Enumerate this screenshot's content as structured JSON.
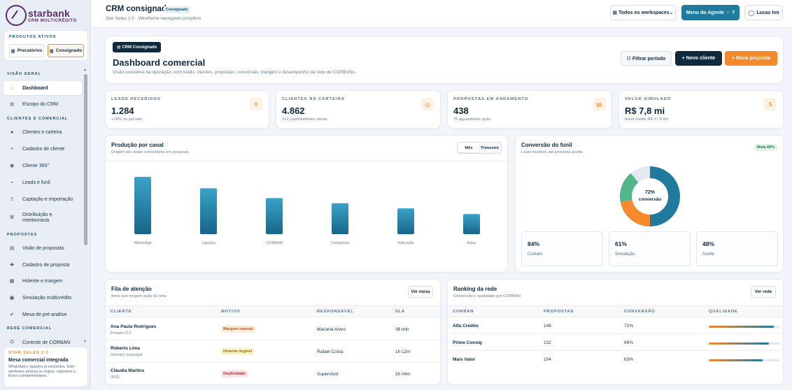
{
  "brand": {
    "name": "starbank",
    "tagline": "CRM MULTICRÉDITO"
  },
  "products": {
    "title": "PRODUTOS ATIVOS",
    "items": [
      {
        "label": "Precatórios",
        "icon": "grid-icon"
      },
      {
        "label": "Consignado",
        "icon": "grid-icon",
        "active": true
      }
    ]
  },
  "nav": {
    "sections": [
      {
        "title": "VISÃO GERAL",
        "items": [
          {
            "label": "Dashboard",
            "icon": "home-icon",
            "glyph": "⌂",
            "active": true
          },
          {
            "label": "Escopo do CRM",
            "icon": "globe-icon",
            "glyph": "◍"
          }
        ]
      },
      {
        "title": "CLIENTES E COMERCIAL",
        "items": [
          {
            "label": "Clientes e carteira",
            "icon": "user-icon",
            "glyph": "👤"
          },
          {
            "label": "Cadastro de cliente",
            "icon": "plus-icon",
            "glyph": "+"
          },
          {
            "label": "Cliente 360°",
            "icon": "eye-icon",
            "glyph": "◉"
          },
          {
            "label": "Leads e funil",
            "icon": "trend-icon",
            "glyph": "⌁"
          },
          {
            "label": "Captação e importação",
            "icon": "import-icon",
            "glyph": "⇪"
          },
          {
            "label": "Distribuição e meritocracia",
            "icon": "distribution-icon",
            "glyph": "⌘"
          }
        ]
      },
      {
        "title": "PROPOSTAS",
        "items": [
          {
            "label": "Visão de propostas",
            "icon": "list-icon",
            "glyph": "▤"
          },
          {
            "label": "Cadastro de proposta",
            "icon": "plus-icon",
            "glyph": "✚"
          },
          {
            "label": "Holerite e margem",
            "icon": "document-icon",
            "glyph": "▦"
          },
          {
            "label": "Simulação multicrédito",
            "icon": "calculator-icon",
            "glyph": "▣"
          },
          {
            "label": "Mesa de pré-análise",
            "icon": "check-icon",
            "glyph": "✔"
          }
        ]
      },
      {
        "title": "REDE COMERCIAL",
        "items": [
          {
            "label": "Controle de CORBAN",
            "icon": "network-icon",
            "glyph": "⛭"
          }
        ]
      }
    ]
  },
  "promo": {
    "kicker": "STAR SALES 2.0",
    "title": "Mesa comercial integrada",
    "text": "WhatsApp e ligações já existentes. Este wireframe prioriza as regras, cadastros e fluxos complementares."
  },
  "header": {
    "title": "CRM consignado",
    "badge": "Consignado",
    "subtitle": "Star Sales 2.0 · Wireframe navegável completo",
    "workspaces": "▦ Todos os workspaces⌄",
    "agent_menu": "Menu do Agente",
    "agent_help": "?",
    "user": "Lucas Ivo"
  },
  "hero": {
    "chip": "▤ CRM Consignado",
    "title": "Dashboard comercial",
    "subtitle": "Visão executiva da operação, com leads, clientes, propostas, conversão, margem e desempenho da rede de CORBANs.",
    "filter": "☷ Filtrar período",
    "new_client": "+ Novo cliente",
    "new_proposal": "+ Nova proposta"
  },
  "kpis": [
    {
      "label": "LEADS RECEBIDOS",
      "value": "1.284",
      "sub": "+18% no período",
      "icon": "person-icon",
      "glyph": "⚲"
    },
    {
      "label": "CLIENTES NA CARTEIRA",
      "value": "4.862",
      "sub": "312 oportunidades ativas",
      "icon": "target-icon",
      "glyph": "◎"
    },
    {
      "label": "PROPOSTAS EM ANDAMENTO",
      "value": "438",
      "sub": "76 aguardando ação",
      "icon": "doc-icon",
      "glyph": "▤"
    },
    {
      "label": "VALOR SIMULADO",
      "value": "R$ 7,8 mi",
      "sub": "ticket médio R$ 17,8 mil",
      "icon": "dollar-icon",
      "glyph": "$"
    }
  ],
  "production": {
    "title": "Produção por canal",
    "subtitle": "Origem dos leads convertidos em proposta",
    "toggle": [
      "Mês",
      "Trimestre"
    ],
    "active_toggle": "Mês"
  },
  "chart_data": {
    "type": "bar",
    "categories": [
      "WhatsApp",
      "Ligação",
      "CORBAN",
      "Campanha",
      "Indicação",
      "Base"
    ],
    "values": [
      100,
      80,
      63,
      54,
      45,
      35
    ],
    "ylim": [
      0,
      100
    ],
    "grid": false,
    "color": "#1f7a9e"
  },
  "funnel": {
    "title": "Conversão do funil",
    "subtitle": "Lead recebido até proposta aceita",
    "meta": "Meta 68%",
    "center_value": "72%",
    "center_label": "conversão",
    "segments": [
      {
        "name": "teal",
        "value": 50,
        "color": "#1f7a9e"
      },
      {
        "name": "orange",
        "value": 22,
        "color": "#f58a2d"
      },
      {
        "name": "green",
        "value": 17,
        "color": "#52b788"
      },
      {
        "name": "gray",
        "value": 11,
        "color": "#e3e8ed"
      }
    ],
    "stages": [
      {
        "value": "84%",
        "label": "Contato"
      },
      {
        "value": "61%",
        "label": "Simulação"
      },
      {
        "value": "48%",
        "label": "Aceite"
      }
    ]
  },
  "queue": {
    "title": "Fila de atenção",
    "subtitle": "Itens que exigem ação do time",
    "button": "Ver mesa",
    "columns": [
      "CLIENTE",
      "MOTIVO",
      "RESPONSÁVEL",
      "SLA"
    ],
    "rows": [
      {
        "name": "Ana Paula Rodrigues",
        "detail": "Privado CLT",
        "reason": "Margem manual",
        "tag_bg": "#fdebd7",
        "tag_fg": "#c2570f",
        "owner": "Mariana Alves",
        "sla": "38 min"
      },
      {
        "name": "Roberto Lima",
        "detail": "Servidor municipal",
        "reason": "Holerite ilegível",
        "tag_bg": "#fcf3c7",
        "tag_fg": "#9a6b05",
        "owner": "Rafael Costa",
        "sla": "1h 12m"
      },
      {
        "name": "Cláudia Martins",
        "detail": "INSS",
        "reason": "Duplicidade",
        "tag_bg": "#fde3e3",
        "tag_fg": "#c0262d",
        "owner": "Supervisor",
        "sla": "2h 04m"
      }
    ]
  },
  "ranking": {
    "title": "Ranking da rede",
    "subtitle": "Conversão e qualidade por CORBAN",
    "button": "Ver rede",
    "columns": [
      "CORBAN",
      "PROPOSTAS",
      "CONVERSÃO",
      "QUALIDADE"
    ],
    "rows": [
      {
        "name": "Alfa Crédito",
        "proposals": "148",
        "conversion": "72%",
        "quality": 0.92
      },
      {
        "name": "Prime Consig",
        "proposals": "132",
        "conversion": "69%",
        "quality": 0.85
      },
      {
        "name": "Mais Valor",
        "proposals": "104",
        "conversion": "63%",
        "quality": 0.76
      }
    ]
  }
}
